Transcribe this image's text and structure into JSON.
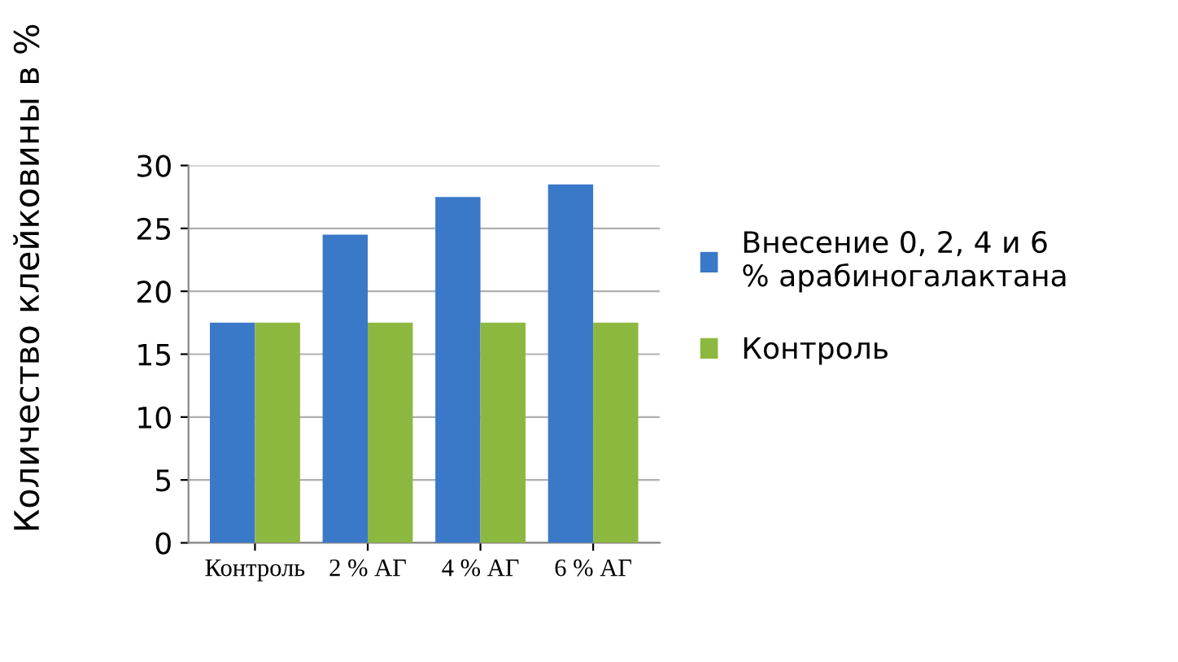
{
  "chart_data": {
    "type": "bar",
    "ylabel": "Количество клейковины в %",
    "categories": [
      "Контроль",
      "2 % АГ",
      "4 % АГ",
      "6 % АГ"
    ],
    "series": [
      {
        "name": "Внесение 0, 2, 4 и 6\n% арабиногалактана",
        "color": "#3a78c8",
        "values": [
          17.5,
          24.5,
          27.5,
          28.5
        ]
      },
      {
        "name": "Контроль",
        "color": "#8db840",
        "values": [
          17.5,
          17.5,
          17.5,
          17.5
        ]
      }
    ],
    "ylim": [
      0,
      30
    ],
    "yticks": [
      0,
      5,
      10,
      15,
      20,
      25,
      30
    ],
    "grid": "y",
    "legend": "right"
  }
}
